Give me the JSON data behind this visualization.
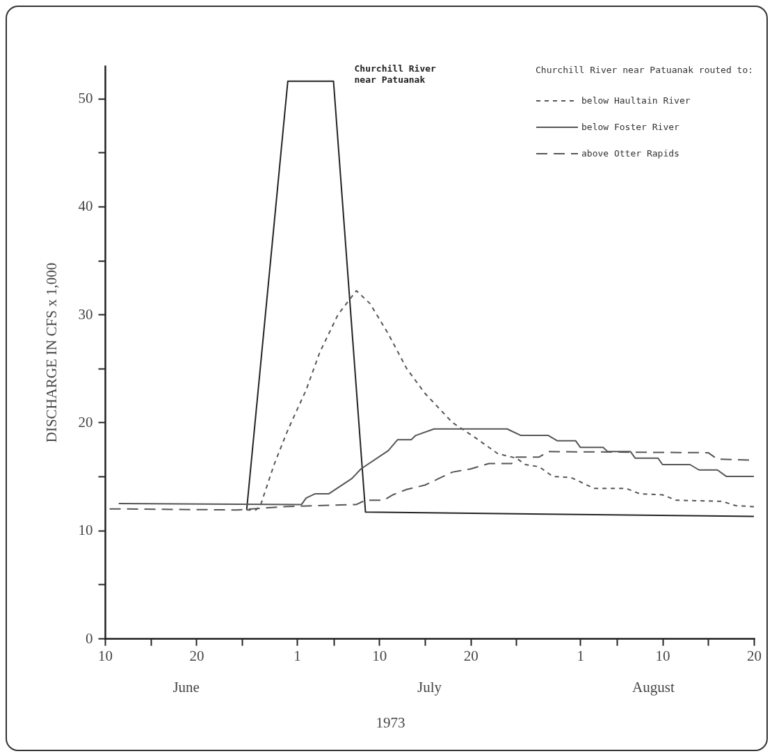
{
  "chart_data": {
    "type": "line",
    "xlabel": "1973",
    "ylabel": "DISCHARGE IN CFS x 1,000",
    "legend_title": "Churchill River near Patuanak routed to:",
    "annotations": [
      "June",
      "July",
      "August"
    ],
    "xlim": [
      "1973-06-10",
      "1973-08-20"
    ],
    "xticks": [
      {
        "value": "1973-06-10",
        "label": "10"
      },
      {
        "value": "1973-06-15",
        "label": null
      },
      {
        "value": "1973-06-20",
        "label": "20"
      },
      {
        "value": "1973-06-25",
        "label": null
      },
      {
        "value": "1973-07-01",
        "label": "1"
      },
      {
        "value": "1973-07-05",
        "label": null
      },
      {
        "value": "1973-07-10",
        "label": "10"
      },
      {
        "value": "1973-07-15",
        "label": null
      },
      {
        "value": "1973-07-20",
        "label": "20"
      },
      {
        "value": "1973-07-25",
        "label": null
      },
      {
        "value": "1973-08-01",
        "label": "1"
      },
      {
        "value": "1973-08-05",
        "label": null
      },
      {
        "value": "1973-08-10",
        "label": "10"
      },
      {
        "value": "1973-08-15",
        "label": null
      },
      {
        "value": "1973-08-20",
        "label": "20"
      }
    ],
    "ylim": [
      0,
      53
    ],
    "yticks": [
      0,
      {
        "value": 5,
        "label": null
      },
      10,
      {
        "value": 15,
        "label": null
      },
      20,
      {
        "value": 25,
        "label": null
      },
      30,
      {
        "value": 35,
        "label": null
      },
      40,
      {
        "value": 45,
        "label": null
      },
      50
    ],
    "grid": false,
    "legend": "top right",
    "marker": "none",
    "series": [
      {
        "name": "Churchill River near Patuanak",
        "color": "#222222",
        "line_style": "solid",
        "x": [
          "1973-06-25T12:00",
          "1973-06-30",
          "1973-07-05",
          "1973-07-08T12:00",
          "1973-08-20"
        ],
        "values": [
          11.9,
          51.6,
          51.6,
          11.7,
          11.3
        ]
      },
      {
        "name": "below Haultain River",
        "color": "#555555",
        "line_style": "dotted",
        "x": [
          "1973-06-25T12:00",
          "1973-06-26T12:00",
          "1973-06-27",
          "1973-06-28T12:00",
          "1973-06-30",
          "1973-07-02",
          "1973-07-03T12:00",
          "1973-07-05T12:00",
          "1973-07-07T12:00",
          "1973-07-09",
          "1973-07-11",
          "1973-07-13",
          "1973-07-15",
          "1973-07-18",
          "1973-07-20T12:00",
          "1973-07-23",
          "1973-07-25",
          "1973-07-26",
          "1973-07-27T12:00",
          "1973-07-29",
          "1973-07-31",
          "1973-08-02T12:00",
          "1973-08-06",
          "1973-08-07T12:00",
          "1973-08-10",
          "1973-08-11T12:00",
          "1973-08-16T12:00",
          "1973-08-18",
          "1973-08-20"
        ],
        "values": [
          11.9,
          11.9,
          12.3,
          16.1,
          19.3,
          23.0,
          26.5,
          30.0,
          32.2,
          31.0,
          28.2,
          25.0,
          22.7,
          20.0,
          18.6,
          17.1,
          16.7,
          16.1,
          15.9,
          15.0,
          14.9,
          13.9,
          13.9,
          13.4,
          13.3,
          12.8,
          12.7,
          12.3,
          12.2
        ]
      },
      {
        "name": "below Foster River",
        "color": "#555555",
        "line_style": "solid",
        "x": [
          "1973-06-11T12:00",
          "1973-07-01T12:00",
          "1973-07-02",
          "1973-07-03",
          "1973-07-04T12:00",
          "1973-07-07",
          "1973-07-08",
          "1973-07-11",
          "1973-07-12",
          "1973-07-13T12:00",
          "1973-07-14",
          "1973-07-16",
          "1973-07-24",
          "1973-07-25T12:00",
          "1973-07-28T12:00",
          "1973-07-29T12:00",
          "1973-07-31T12:00",
          "1973-08-01",
          "1973-08-03T12:00",
          "1973-08-04",
          "1973-08-06T12:00",
          "1973-08-07",
          "1973-08-09T12:00",
          "1973-08-10",
          "1973-08-13",
          "1973-08-14",
          "1973-08-16",
          "1973-08-17",
          "1973-08-20"
        ],
        "values": [
          12.5,
          12.4,
          13.0,
          13.4,
          13.4,
          14.8,
          15.7,
          17.4,
          18.4,
          18.4,
          18.8,
          19.4,
          19.4,
          18.8,
          18.8,
          18.3,
          18.3,
          17.7,
          17.7,
          17.3,
          17.3,
          16.7,
          16.7,
          16.1,
          16.1,
          15.6,
          15.6,
          15.0,
          15.0
        ]
      },
      {
        "name": "above Otter Rapids",
        "color": "#555555",
        "line_style": "dashed",
        "x": [
          "1973-06-10T12:00",
          "1973-06-24T12:00",
          "1973-06-29T12:00",
          "1973-07-07T12:00",
          "1973-07-08T12:00",
          "1973-07-10T12:00",
          "1973-07-11T12:00",
          "1973-07-13",
          "1973-07-15",
          "1973-07-16T12:00",
          "1973-07-18",
          "1973-07-20",
          "1973-07-22",
          "1973-07-24T12:00",
          "1973-07-25",
          "1973-07-27T12:00",
          "1973-07-28T12:00",
          "1973-08-15",
          "1973-08-16",
          "1973-08-20"
        ],
        "values": [
          12.0,
          11.9,
          12.2,
          12.4,
          12.8,
          12.8,
          13.3,
          13.8,
          14.2,
          14.8,
          15.4,
          15.7,
          16.2,
          16.2,
          16.8,
          16.8,
          17.3,
          17.2,
          16.6,
          16.5
        ]
      }
    ]
  }
}
